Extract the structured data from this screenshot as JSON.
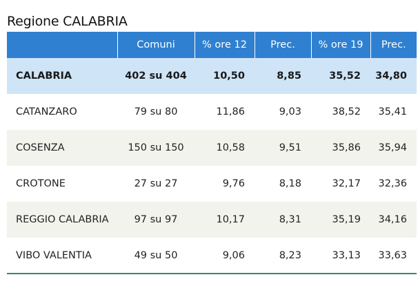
{
  "title": "Regione CALABRIA",
  "table": {
    "headers": [
      "",
      "Comuni",
      "% ore 12",
      "Prec.",
      "% ore 19",
      "Prec."
    ],
    "rows": [
      {
        "name": "CALABRIA",
        "comuni": "402 su 404",
        "ore12": "10,50",
        "prec12": "8,85",
        "ore19": "35,52",
        "prec19": "34,80"
      },
      {
        "name": "CATANZARO",
        "comuni": "79 su 80",
        "ore12": "11,86",
        "prec12": "9,03",
        "ore19": "38,52",
        "prec19": "35,41"
      },
      {
        "name": "COSENZA",
        "comuni": "150 su 150",
        "ore12": "10,58",
        "prec12": "9,51",
        "ore19": "35,86",
        "prec19": "35,94"
      },
      {
        "name": "CROTONE",
        "comuni": "27 su 27",
        "ore12": "9,76",
        "prec12": "8,18",
        "ore19": "32,17",
        "prec19": "32,36"
      },
      {
        "name": "REGGIO CALABRIA",
        "comuni": "97 su 97",
        "ore12": "10,17",
        "prec12": "8,31",
        "ore19": "35,19",
        "prec19": "34,16"
      },
      {
        "name": "VIBO VALENTIA",
        "comuni": "49 su 50",
        "ore12": "9,06",
        "prec12": "8,23",
        "ore19": "33,13",
        "prec19": "33,63"
      }
    ]
  },
  "colors": {
    "header_bg": "#2f80d1",
    "region_row_bg": "#cfe4f7",
    "alt_row_bg": "#f3f3ee",
    "bottom_border": "#2e8b6e"
  }
}
